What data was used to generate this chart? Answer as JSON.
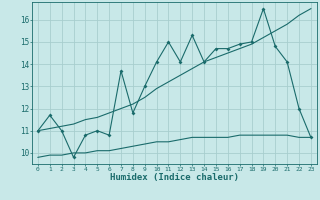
{
  "xlabel": "Humidex (Indice chaleur)",
  "bg_color": "#c8e8e8",
  "line_color": "#1a6b6b",
  "grid_color": "#a8cece",
  "xlim": [
    -0.5,
    23.5
  ],
  "ylim": [
    9.5,
    16.8
  ],
  "xticks": [
    0,
    1,
    2,
    3,
    4,
    5,
    6,
    7,
    8,
    9,
    10,
    11,
    12,
    13,
    14,
    15,
    16,
    17,
    18,
    19,
    20,
    21,
    22,
    23
  ],
  "yticks": [
    10,
    11,
    12,
    13,
    14,
    15,
    16
  ],
  "line1_x": [
    0,
    1,
    2,
    3,
    4,
    5,
    6,
    7,
    8,
    9,
    10,
    11,
    12,
    13,
    14,
    15,
    16,
    17,
    18,
    19,
    20,
    21,
    22,
    23
  ],
  "line1_y": [
    11.0,
    11.7,
    11.0,
    9.8,
    10.8,
    11.0,
    10.8,
    13.7,
    11.8,
    13.0,
    14.1,
    15.0,
    14.1,
    15.3,
    14.1,
    14.7,
    14.7,
    14.9,
    15.0,
    16.5,
    14.8,
    14.1,
    12.0,
    10.7
  ],
  "line2_x": [
    0,
    2,
    3,
    4,
    5,
    6,
    7,
    8,
    9,
    10,
    11,
    12,
    13,
    14,
    15,
    16,
    17,
    18,
    19,
    20,
    21,
    22,
    23
  ],
  "line2_y": [
    11.0,
    11.2,
    11.3,
    11.5,
    11.6,
    11.8,
    12.0,
    12.2,
    12.5,
    12.9,
    13.2,
    13.5,
    13.8,
    14.1,
    14.3,
    14.5,
    14.7,
    14.9,
    15.2,
    15.5,
    15.8,
    16.2,
    16.5
  ],
  "line3_x": [
    0,
    1,
    2,
    3,
    4,
    5,
    6,
    7,
    8,
    9,
    10,
    11,
    12,
    13,
    14,
    15,
    16,
    17,
    18,
    19,
    20,
    21,
    22,
    23
  ],
  "line3_y": [
    9.8,
    9.9,
    9.9,
    10.0,
    10.0,
    10.1,
    10.1,
    10.2,
    10.3,
    10.4,
    10.5,
    10.5,
    10.6,
    10.7,
    10.7,
    10.7,
    10.7,
    10.8,
    10.8,
    10.8,
    10.8,
    10.8,
    10.7,
    10.7
  ]
}
